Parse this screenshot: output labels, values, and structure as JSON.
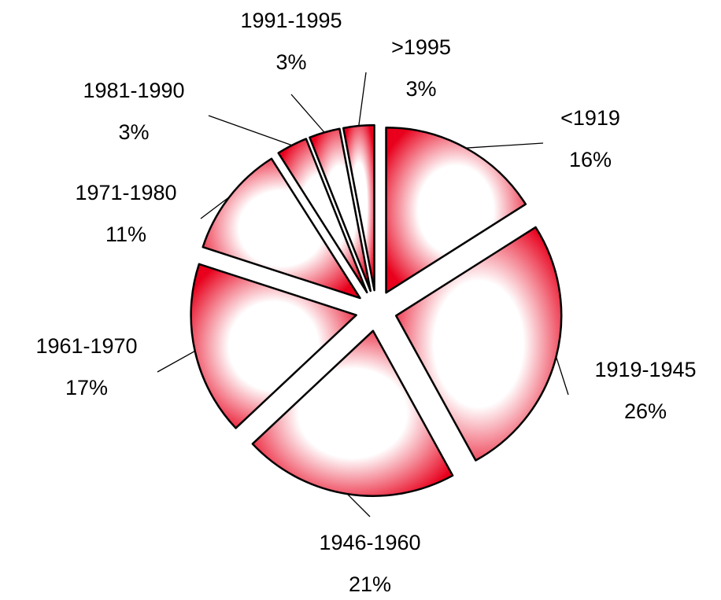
{
  "chart_data": {
    "type": "pie",
    "categories": [
      "<1919",
      "1919-1945",
      "1946-1960",
      "1961-1970",
      "1971-1980",
      "1981-1990",
      "1991-1995",
      ">1995"
    ],
    "values": [
      16,
      26,
      21,
      17,
      11,
      3,
      3,
      3
    ],
    "value_labels": [
      "16%",
      "26%",
      "21%",
      "17%",
      "11%",
      "3%",
      "3%",
      "3%"
    ],
    "color": "#e8001c"
  }
}
